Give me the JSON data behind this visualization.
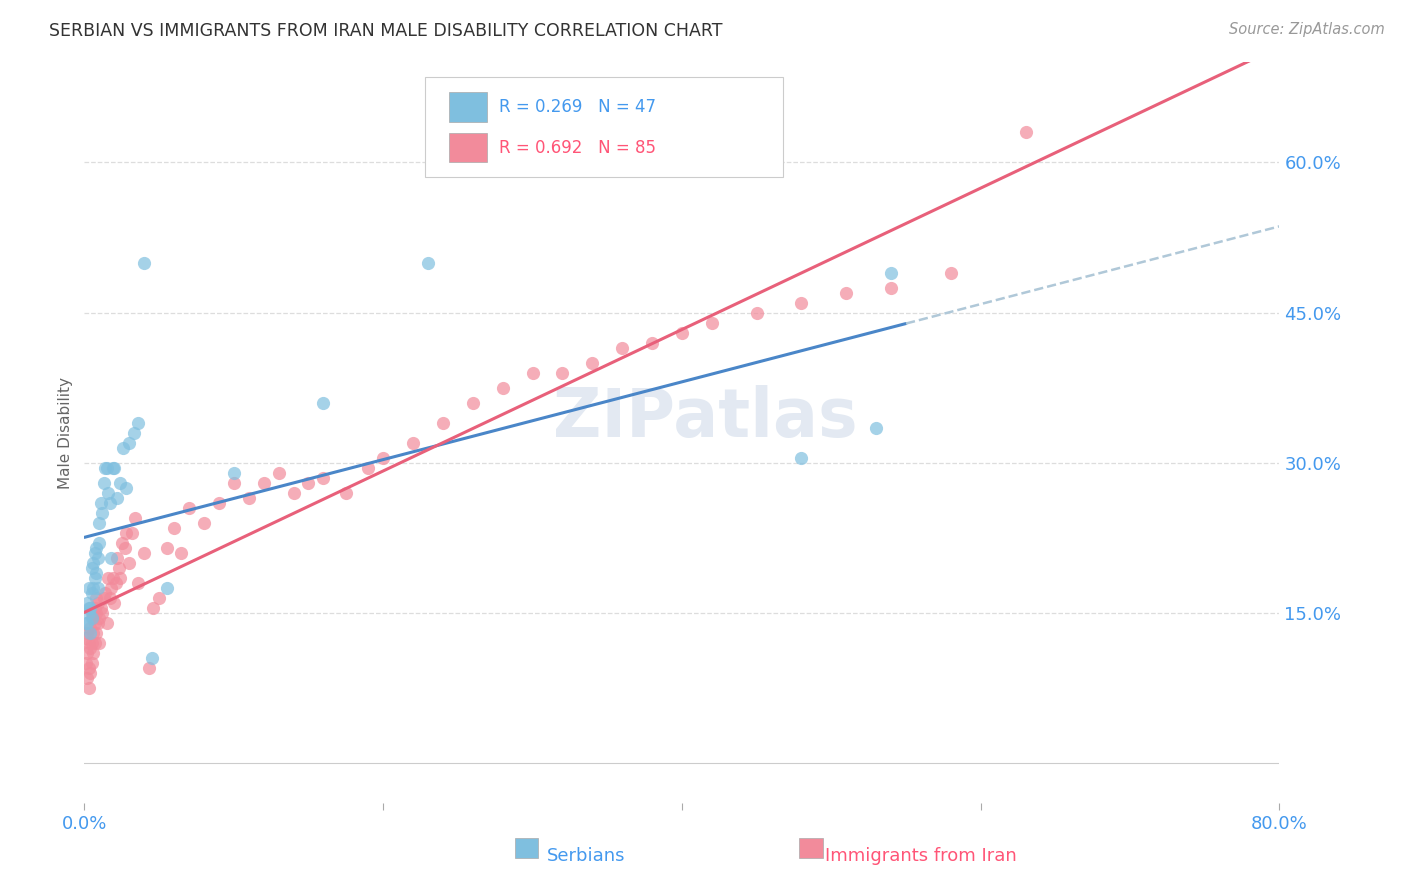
{
  "title": "SERBIAN VS IMMIGRANTS FROM IRAN MALE DISABILITY CORRELATION CHART",
  "source": "Source: ZipAtlas.com",
  "ylabel": "Male Disability",
  "xlim": [
    0.0,
    0.8
  ],
  "ylim": [
    -0.04,
    0.7
  ],
  "yticks": [
    0.15,
    0.3,
    0.45,
    0.6
  ],
  "ytick_labels": [
    "15.0%",
    "30.0%",
    "45.0%",
    "60.0%"
  ],
  "xtick_labels": [
    "0.0%",
    "",
    "",
    "",
    "80.0%"
  ],
  "legend_r1": "R = 0.269",
  "legend_n1": "N = 47",
  "legend_r2": "R = 0.692",
  "legend_n2": "N = 85",
  "color_serbian": "#7fbfdf",
  "color_iran": "#f28b9b",
  "color_trendline_serbian": "#4a86c8",
  "color_trendline_iran": "#e8607a",
  "color_trendline_serbian_ext": "#b0c8d8",
  "background_color": "#ffffff",
  "grid_color": "#dddddd",
  "watermark": "ZIPatlas",
  "serbian_x": [
    0.001,
    0.002,
    0.002,
    0.003,
    0.003,
    0.003,
    0.004,
    0.004,
    0.005,
    0.005,
    0.005,
    0.006,
    0.006,
    0.007,
    0.007,
    0.008,
    0.008,
    0.009,
    0.009,
    0.01,
    0.01,
    0.011,
    0.012,
    0.013,
    0.014,
    0.015,
    0.016,
    0.017,
    0.018,
    0.019,
    0.02,
    0.022,
    0.024,
    0.026,
    0.028,
    0.03,
    0.033,
    0.036,
    0.04,
    0.045,
    0.055,
    0.1,
    0.16,
    0.23,
    0.48,
    0.53,
    0.54
  ],
  "serbian_y": [
    0.14,
    0.16,
    0.14,
    0.15,
    0.175,
    0.155,
    0.13,
    0.155,
    0.145,
    0.17,
    0.195,
    0.175,
    0.2,
    0.185,
    0.21,
    0.19,
    0.215,
    0.175,
    0.205,
    0.22,
    0.24,
    0.26,
    0.25,
    0.28,
    0.295,
    0.295,
    0.27,
    0.26,
    0.205,
    0.295,
    0.295,
    0.265,
    0.28,
    0.315,
    0.275,
    0.32,
    0.33,
    0.34,
    0.5,
    0.105,
    0.175,
    0.29,
    0.36,
    0.5,
    0.305,
    0.335,
    0.49
  ],
  "iran_x": [
    0.001,
    0.001,
    0.002,
    0.002,
    0.002,
    0.003,
    0.003,
    0.003,
    0.004,
    0.004,
    0.004,
    0.005,
    0.005,
    0.005,
    0.006,
    0.006,
    0.006,
    0.007,
    0.007,
    0.007,
    0.008,
    0.008,
    0.008,
    0.009,
    0.009,
    0.01,
    0.01,
    0.011,
    0.012,
    0.013,
    0.014,
    0.015,
    0.016,
    0.017,
    0.018,
    0.019,
    0.02,
    0.021,
    0.022,
    0.023,
    0.024,
    0.025,
    0.027,
    0.028,
    0.03,
    0.032,
    0.034,
    0.036,
    0.04,
    0.043,
    0.046,
    0.05,
    0.055,
    0.06,
    0.065,
    0.07,
    0.08,
    0.09,
    0.1,
    0.11,
    0.12,
    0.13,
    0.14,
    0.15,
    0.16,
    0.175,
    0.19,
    0.2,
    0.22,
    0.24,
    0.26,
    0.28,
    0.3,
    0.32,
    0.34,
    0.36,
    0.38,
    0.4,
    0.42,
    0.45,
    0.48,
    0.51,
    0.54,
    0.58,
    0.63
  ],
  "iran_y": [
    0.1,
    0.125,
    0.085,
    0.11,
    0.13,
    0.075,
    0.095,
    0.12,
    0.09,
    0.115,
    0.135,
    0.1,
    0.12,
    0.15,
    0.11,
    0.13,
    0.145,
    0.12,
    0.14,
    0.155,
    0.13,
    0.15,
    0.165,
    0.14,
    0.16,
    0.12,
    0.145,
    0.155,
    0.15,
    0.165,
    0.17,
    0.14,
    0.185,
    0.165,
    0.175,
    0.185,
    0.16,
    0.18,
    0.205,
    0.195,
    0.185,
    0.22,
    0.215,
    0.23,
    0.2,
    0.23,
    0.245,
    0.18,
    0.21,
    0.095,
    0.155,
    0.165,
    0.215,
    0.235,
    0.21,
    0.255,
    0.24,
    0.26,
    0.28,
    0.265,
    0.28,
    0.29,
    0.27,
    0.28,
    0.285,
    0.27,
    0.295,
    0.305,
    0.32,
    0.34,
    0.36,
    0.375,
    0.39,
    0.39,
    0.4,
    0.415,
    0.42,
    0.43,
    0.44,
    0.45,
    0.46,
    0.47,
    0.475,
    0.49,
    0.63
  ],
  "serb_trendline_start_x": 0.0,
  "serb_trendline_end_solid_x": 0.55,
  "serb_trendline_end_dash_x": 0.8,
  "iran_trendline_start_x": 0.0,
  "iran_trendline_end_x": 0.8
}
